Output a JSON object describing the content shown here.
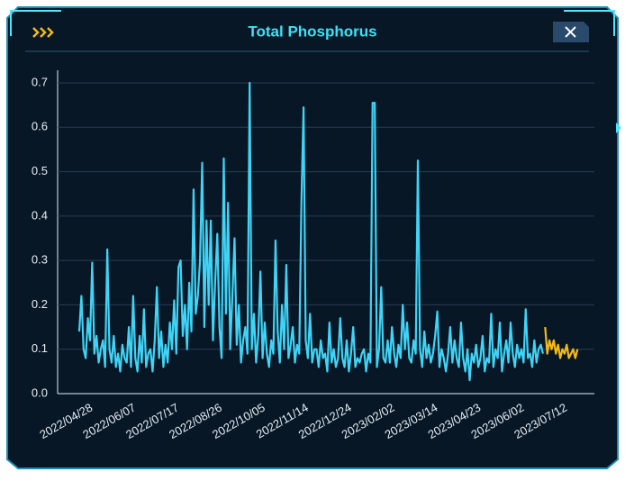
{
  "chart_data": {
    "type": "line",
    "title": "Total Phosphorus",
    "categories": [
      "2022/04/28",
      null,
      null,
      null,
      null,
      null,
      null,
      null,
      null,
      null,
      null,
      null,
      null,
      null,
      null,
      null,
      null,
      null,
      null,
      null,
      "2022/06/07",
      null,
      null,
      null,
      null,
      null,
      null,
      null,
      null,
      null,
      null,
      null,
      null,
      null,
      null,
      null,
      null,
      null,
      null,
      null,
      "2022/07/17",
      null,
      null,
      null,
      null,
      null,
      null,
      null,
      null,
      null,
      null,
      null,
      null,
      null,
      null,
      null,
      null,
      null,
      null,
      null,
      "2022/08/26",
      null,
      null,
      null,
      null,
      null,
      null,
      null,
      null,
      null,
      null,
      null,
      null,
      null,
      null,
      null,
      null,
      null,
      null,
      null,
      "2022/10/05",
      null,
      null,
      null,
      null,
      null,
      null,
      null,
      null,
      null,
      null,
      null,
      null,
      null,
      null,
      null,
      null,
      null,
      null,
      null,
      "2022/11/14",
      null,
      null,
      null,
      null,
      null,
      null,
      null,
      null,
      null,
      null,
      null,
      null,
      null,
      null,
      null,
      null,
      null,
      null,
      null,
      "2022/12/24",
      null,
      null,
      null,
      null,
      null,
      null,
      null,
      null,
      null,
      null,
      null,
      null,
      null,
      null,
      null,
      null,
      null,
      null,
      null,
      "2023/02/02",
      null,
      null,
      null,
      null,
      null,
      null,
      null,
      null,
      null,
      null,
      null,
      null,
      null,
      null,
      null,
      null,
      null,
      null,
      null,
      "2023/03/14",
      null,
      null,
      null,
      null,
      null,
      null,
      null,
      null,
      null,
      null,
      null,
      null,
      null,
      null,
      null,
      null,
      null,
      null,
      null,
      "2023/04/23",
      null,
      null,
      null,
      null,
      null,
      null,
      null,
      null,
      null,
      null,
      null,
      null,
      null,
      null,
      null,
      null,
      null,
      null,
      null,
      "2023/06/02",
      null,
      null,
      null,
      null,
      null,
      null,
      null,
      null,
      null,
      null,
      null,
      null,
      null,
      null,
      null,
      null,
      null,
      null,
      null,
      "2023/07/12",
      null,
      null,
      null,
      null,
      null,
      null,
      null,
      null,
      null,
      null,
      null
    ],
    "series": [
      {
        "color": "#3fd3f5",
        "values": [
          0.14,
          0.22,
          0.1,
          0.08,
          0.17,
          0.12,
          0.295,
          0.09,
          0.13,
          0.07,
          0.1,
          0.12,
          0.06,
          0.325,
          0.1,
          0.07,
          0.13,
          0.06,
          0.09,
          0.05,
          0.11,
          0.08,
          0.07,
          0.15,
          0.06,
          0.22,
          0.08,
          0.05,
          0.13,
          0.07,
          0.19,
          0.06,
          0.09,
          0.1,
          0.05,
          0.12,
          0.24,
          0.08,
          0.14,
          0.06,
          0.11,
          0.07,
          0.16,
          0.1,
          0.21,
          0.09,
          0.285,
          0.3,
          0.13,
          0.2,
          0.1,
          0.25,
          0.14,
          0.46,
          0.18,
          0.22,
          0.3,
          0.52,
          0.15,
          0.39,
          0.2,
          0.39,
          0.12,
          0.25,
          0.36,
          0.15,
          0.08,
          0.53,
          0.18,
          0.43,
          0.1,
          0.22,
          0.35,
          0.11,
          0.2,
          0.07,
          0.12,
          0.15,
          0.09,
          0.7,
          0.1,
          0.18,
          0.07,
          0.13,
          0.275,
          0.08,
          0.16,
          0.09,
          0.06,
          0.12,
          0.09,
          0.345,
          0.14,
          0.07,
          0.2,
          0.1,
          0.29,
          0.08,
          0.11,
          0.15,
          0.07,
          0.11,
          0.09,
          0.43,
          0.645,
          0.12,
          0.08,
          0.18,
          0.07,
          0.1,
          0.1,
          0.06,
          0.12,
          0.08,
          0.09,
          0.05,
          0.16,
          0.07,
          0.1,
          0.06,
          0.08,
          0.17,
          0.08,
          0.06,
          0.12,
          0.05,
          0.09,
          0.15,
          0.06,
          0.08,
          0.07,
          0.09,
          0.1,
          0.05,
          0.09,
          0.07,
          0.655,
          0.655,
          0.06,
          0.1,
          0.24,
          0.08,
          0.07,
          0.12,
          0.07,
          0.15,
          0.09,
          0.06,
          0.11,
          0.08,
          0.2,
          0.1,
          0.16,
          0.08,
          0.07,
          0.12,
          0.09,
          0.525,
          0.1,
          0.06,
          0.14,
          0.08,
          0.11,
          0.07,
          0.09,
          0.13,
          0.185,
          0.06,
          0.1,
          0.08,
          0.05,
          0.09,
          0.15,
          0.07,
          0.12,
          0.08,
          0.06,
          0.16,
          0.08,
          0.05,
          0.1,
          0.03,
          0.09,
          0.07,
          0.11,
          0.06,
          0.08,
          0.13,
          0.05,
          0.08,
          0.07,
          0.18,
          0.06,
          0.1,
          0.08,
          0.16,
          0.05,
          0.09,
          0.12,
          0.07,
          0.16,
          0.09,
          0.06,
          0.11,
          0.08,
          0.1,
          0.07,
          0.19,
          0.08,
          0.09,
          0.06,
          0.12,
          0.07,
          0.1,
          0.11,
          0.09,
          null,
          null,
          null,
          null,
          null,
          null,
          null,
          null,
          null,
          null,
          null,
          null,
          null,
          null,
          null,
          null
        ]
      },
      {
        "color": "#f5b915",
        "values": [
          null,
          null,
          null,
          null,
          null,
          null,
          null,
          null,
          null,
          null,
          null,
          null,
          null,
          null,
          null,
          null,
          null,
          null,
          null,
          null,
          null,
          null,
          null,
          null,
          null,
          null,
          null,
          null,
          null,
          null,
          null,
          null,
          null,
          null,
          null,
          null,
          null,
          null,
          null,
          null,
          null,
          null,
          null,
          null,
          null,
          null,
          null,
          null,
          null,
          null,
          null,
          null,
          null,
          null,
          null,
          null,
          null,
          null,
          null,
          null,
          null,
          null,
          null,
          null,
          null,
          null,
          null,
          null,
          null,
          null,
          null,
          null,
          null,
          null,
          null,
          null,
          null,
          null,
          null,
          null,
          null,
          null,
          null,
          null,
          null,
          null,
          null,
          null,
          null,
          null,
          null,
          null,
          null,
          null,
          null,
          null,
          null,
          null,
          null,
          null,
          null,
          null,
          null,
          null,
          null,
          null,
          null,
          null,
          null,
          null,
          null,
          null,
          null,
          null,
          null,
          null,
          null,
          null,
          null,
          null,
          null,
          null,
          null,
          null,
          null,
          null,
          null,
          null,
          null,
          null,
          null,
          null,
          null,
          null,
          null,
          null,
          null,
          null,
          null,
          null,
          null,
          null,
          null,
          null,
          null,
          null,
          null,
          null,
          null,
          null,
          null,
          null,
          null,
          null,
          null,
          null,
          null,
          null,
          null,
          null,
          null,
          null,
          null,
          null,
          null,
          null,
          null,
          null,
          null,
          null,
          null,
          null,
          null,
          null,
          null,
          null,
          null,
          null,
          null,
          null,
          null,
          null,
          null,
          null,
          null,
          null,
          null,
          null,
          null,
          null,
          null,
          null,
          null,
          null,
          null,
          null,
          null,
          null,
          null,
          null,
          null,
          null,
          null,
          null,
          null,
          null,
          null,
          null,
          null,
          null,
          null,
          null,
          null,
          null,
          null,
          null,
          0.15,
          0.09,
          0.12,
          0.1,
          0.12,
          0.09,
          0.11,
          0.08,
          0.1,
          0.09,
          0.11,
          0.08,
          0.09,
          0.1,
          0.08,
          0.1
        ]
      }
    ],
    "ylim": [
      0,
      0.7
    ],
    "yticks": [
      {
        "value": 0,
        "label": "0.0"
      },
      0.1,
      0.2,
      0.3,
      0.4,
      0.5,
      0.6,
      0.7
    ],
    "grid": true
  }
}
